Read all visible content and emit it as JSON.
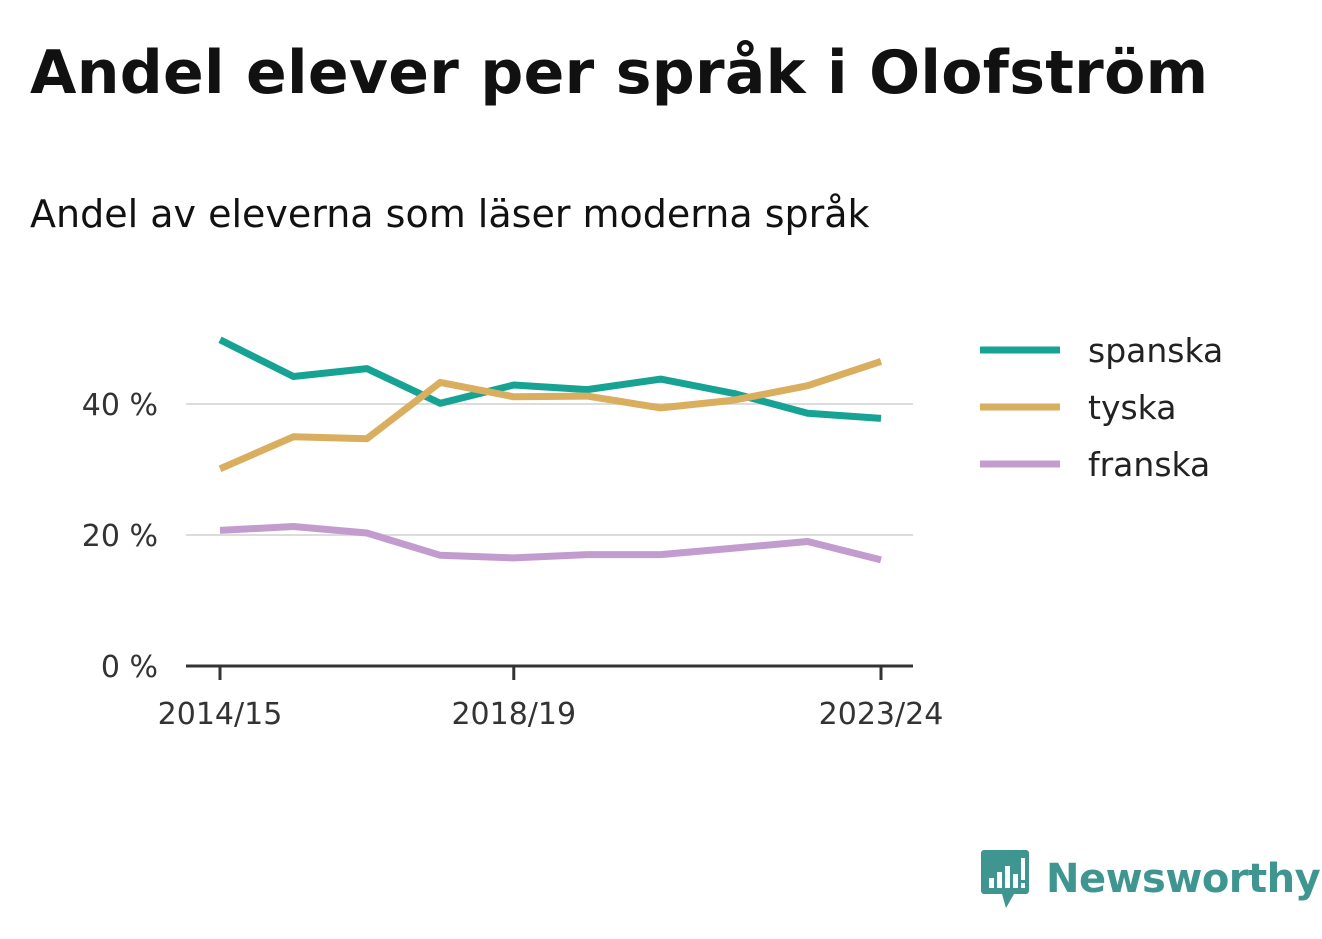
{
  "title": "Andel elever per språk i Olofström",
  "subtitle": "Andel av eleverna som läser moderna språk",
  "brand": {
    "name": "Newsworthy",
    "icon": "newsworthy-logo-icon",
    "color": "#3f958f"
  },
  "chart_data": {
    "type": "line",
    "x": [
      "2014/15",
      "2015/16",
      "2016/17",
      "2017/18",
      "2018/19",
      "2019/20",
      "2020/21",
      "2021/22",
      "2022/23",
      "2023/24"
    ],
    "x_tick_labels": [
      "2014/15",
      "2018/19",
      "2023/24"
    ],
    "y_ticks": [
      0,
      20,
      40
    ],
    "y_tick_labels": [
      "0 %",
      "20 %",
      "40 %"
    ],
    "ylim": [
      0,
      53
    ],
    "grid": true,
    "legend_position": "right",
    "series": [
      {
        "name": "spanska",
        "color": "#16a394",
        "values": [
          49.8,
          44.2,
          45.4,
          40.1,
          42.9,
          42.2,
          43.8,
          41.6,
          38.6,
          37.8
        ]
      },
      {
        "name": "tyska",
        "color": "#d9ae5f",
        "values": [
          30.1,
          35.0,
          34.7,
          43.3,
          41.1,
          41.2,
          39.4,
          40.6,
          42.8,
          46.5
        ]
      },
      {
        "name": "franska",
        "color": "#c39ccf",
        "values": [
          20.7,
          21.3,
          20.3,
          16.9,
          16.5,
          17.0,
          17.0,
          18.0,
          19.0,
          16.2
        ]
      }
    ]
  }
}
